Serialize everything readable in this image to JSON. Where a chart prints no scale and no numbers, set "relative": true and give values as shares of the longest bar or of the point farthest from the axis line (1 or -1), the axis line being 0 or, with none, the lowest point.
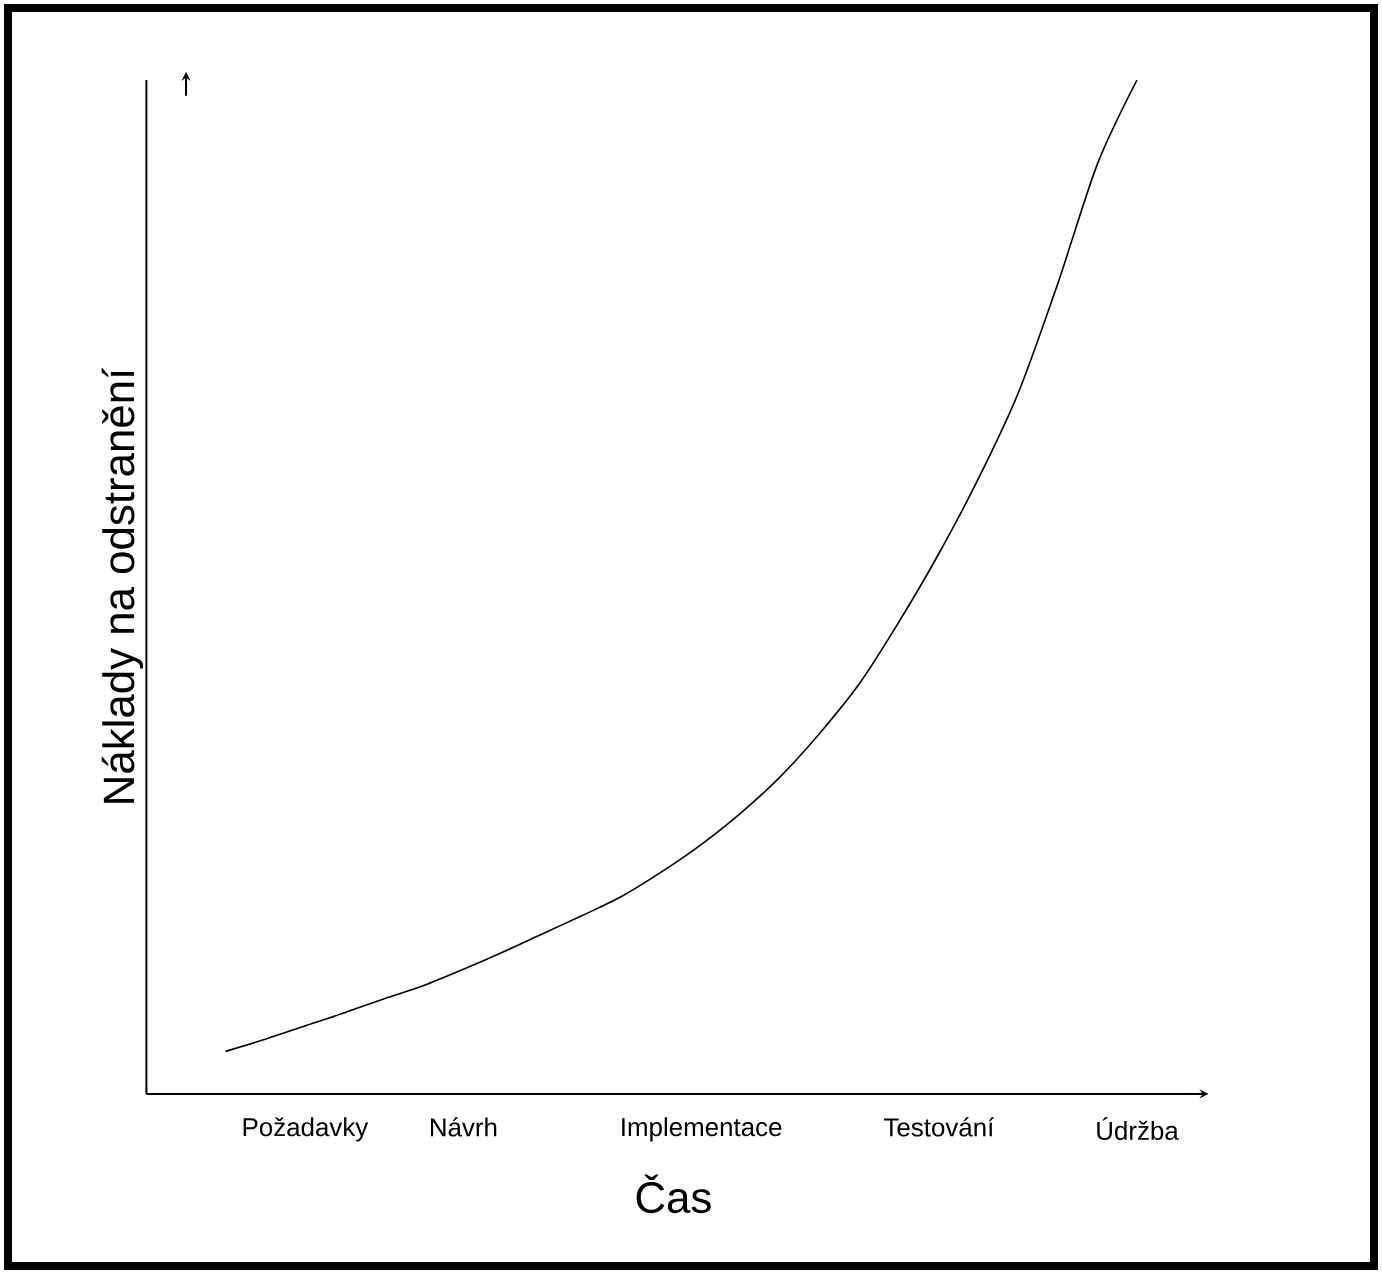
{
  "chart_data": {
    "type": "line",
    "relative": true,
    "xlabel": "Čas",
    "ylabel": "Náklady na odstranění",
    "categories": [
      null,
      null,
      null,
      "Požadavky",
      null,
      null,
      null,
      "Návrh",
      null,
      null,
      null,
      null,
      null,
      "Implementace",
      null,
      null,
      null,
      null,
      null,
      "Testování",
      null,
      null,
      null,
      null,
      "Údržba"
    ],
    "values": [
      null,
      0.042,
      0.054,
      0.067,
      0.08,
      0.094,
      0.107,
      0.123,
      0.14,
      0.158,
      0.176,
      0.195,
      0.219,
      0.246,
      0.277,
      0.313,
      0.356,
      0.405,
      0.466,
      0.533,
      0.607,
      0.691,
      0.799,
      0.917,
      1.0
    ],
    "color": "#000000",
    "grid": false
  }
}
